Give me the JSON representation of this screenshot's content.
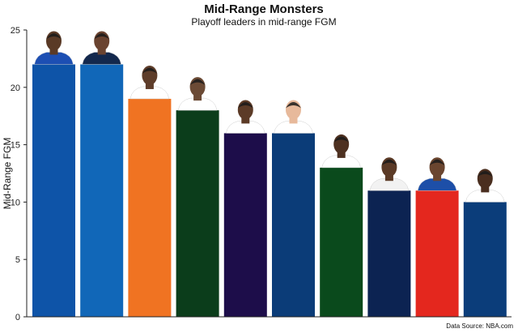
{
  "chart_data": {
    "type": "bar",
    "title": "Mid-Range Monsters",
    "subtitle": "Playoff leaders in mid-range FGM",
    "ylabel": "Mid-Range FGM",
    "xlabel": "",
    "ylim": [
      0,
      25
    ],
    "yticks": [
      0,
      5,
      10,
      15,
      20,
      25
    ],
    "grid": false,
    "legend": "none",
    "source": "Data Source: NBA.com",
    "categories": [
      "",
      "",
      "",
      "",
      "",
      "",
      "",
      "",
      "",
      ""
    ],
    "values": [
      22,
      22,
      19,
      18,
      16,
      16,
      13,
      11,
      11,
      10
    ],
    "bar_colors": [
      "#0E54A8",
      "#1167B8",
      "#F07322",
      "#0B3D1B",
      "#1D0D4A",
      "#0B3C78",
      "#0A4A1C",
      "#0C2352",
      "#E4271E",
      "#0B3D7A"
    ],
    "jersey_colors": [
      "#1D4FB3",
      "#13284D",
      "#FFFFFF",
      "#FFFFFF",
      "#FFFFFF",
      "#FFFFFF",
      "#FFFFFF",
      "#F2F2F2",
      "#1D4FA8",
      "#FFFFFF"
    ],
    "skin_tones": [
      "#5A3A26",
      "#6A4330",
      "#5E3D2A",
      "#6B4A35",
      "#5C3B27",
      "#E7B99B",
      "#4E3121",
      "#5B3A26",
      "#6A452F",
      "#4A2E1F"
    ]
  }
}
